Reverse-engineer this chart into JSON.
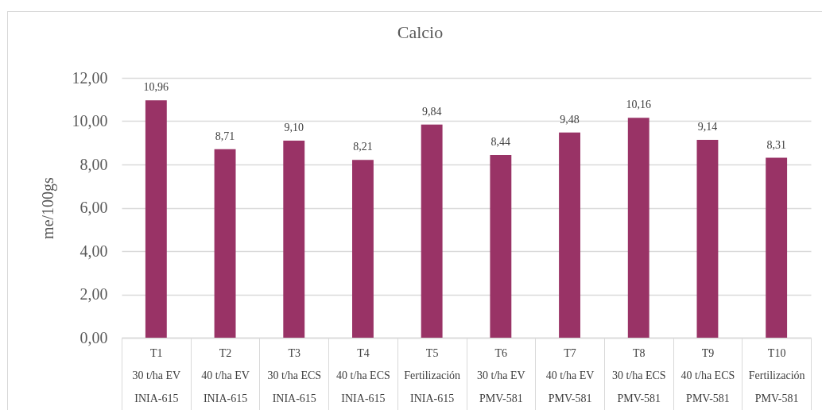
{
  "chart_data": {
    "type": "bar",
    "title": "Calcio",
    "ylabel": "me/100gs",
    "categories": [
      "T1\n30 t/ha EV\nINIA-615",
      "T2\n40 t/ha EV\nINIA-615",
      "T3\n30 t/ha ECS\nINIA-615",
      "T4\n40 t/ha ECS\nINIA-615",
      "T5\nFertilización\nINIA-615",
      "T6\n30 t/ha EV\nPMV-581",
      "T7\n40 t/ha EV\nPMV-581",
      "T8\n30 t/ha ECS\nPMV-581",
      "T9\n40 t/ha ECS\nPMV-581",
      "T10\nFertilización\nPMV-581"
    ],
    "values": [
      10.96,
      8.71,
      9.1,
      8.21,
      9.84,
      8.44,
      9.48,
      10.16,
      9.14,
      8.31
    ],
    "value_labels": [
      "10,96",
      "8,71",
      "9,10",
      "8,21",
      "9,84",
      "8,44",
      "9,48",
      "10,16",
      "9,14",
      "8,31"
    ],
    "color": "#993366",
    "ylim": [
      0,
      12
    ],
    "yticks": [
      {
        "value": 0,
        "label": "0,00"
      },
      {
        "value": 2,
        "label": "2,00"
      },
      {
        "value": 4,
        "label": "4,00"
      },
      {
        "value": 6,
        "label": "6,00"
      },
      {
        "value": 8,
        "label": "8,00"
      },
      {
        "value": 10,
        "label": "10,00"
      },
      {
        "value": 12,
        "label": "12,00"
      }
    ],
    "grid": "y"
  }
}
